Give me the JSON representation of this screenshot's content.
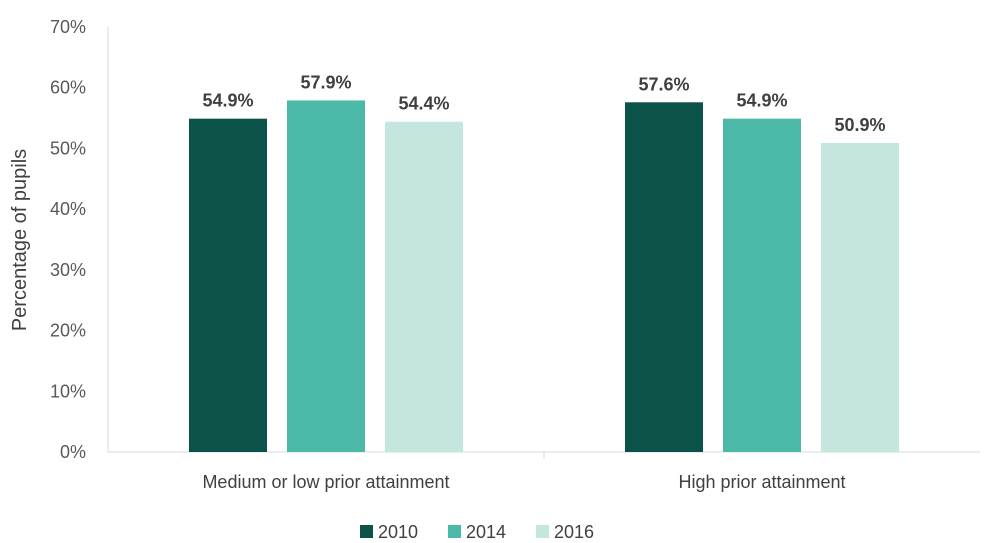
{
  "chart_data": {
    "type": "bar",
    "title": "",
    "xlabel": "",
    "ylabel": "Percentage of pupils",
    "ylim": [
      0,
      70
    ],
    "ytick_labels": [
      "0%",
      "10%",
      "20%",
      "30%",
      "40%",
      "50%",
      "60%",
      "70%"
    ],
    "categories": [
      "Medium or low prior attainment",
      "High prior attainment"
    ],
    "series": [
      {
        "name": "2010",
        "values": [
          54.9,
          57.6
        ],
        "labels": [
          "54.9%",
          "57.6%"
        ],
        "color": "#0b5349"
      },
      {
        "name": "2014",
        "values": [
          57.9,
          54.9
        ],
        "labels": [
          "57.9%",
          "54.9%"
        ],
        "color": "#4cb9a8"
      },
      {
        "name": "2016",
        "values": [
          54.4,
          50.9
        ],
        "labels": [
          "54.4%",
          "50.9%"
        ],
        "color": "#c4e6df"
      }
    ],
    "grid": false,
    "legend_position": "bottom"
  }
}
